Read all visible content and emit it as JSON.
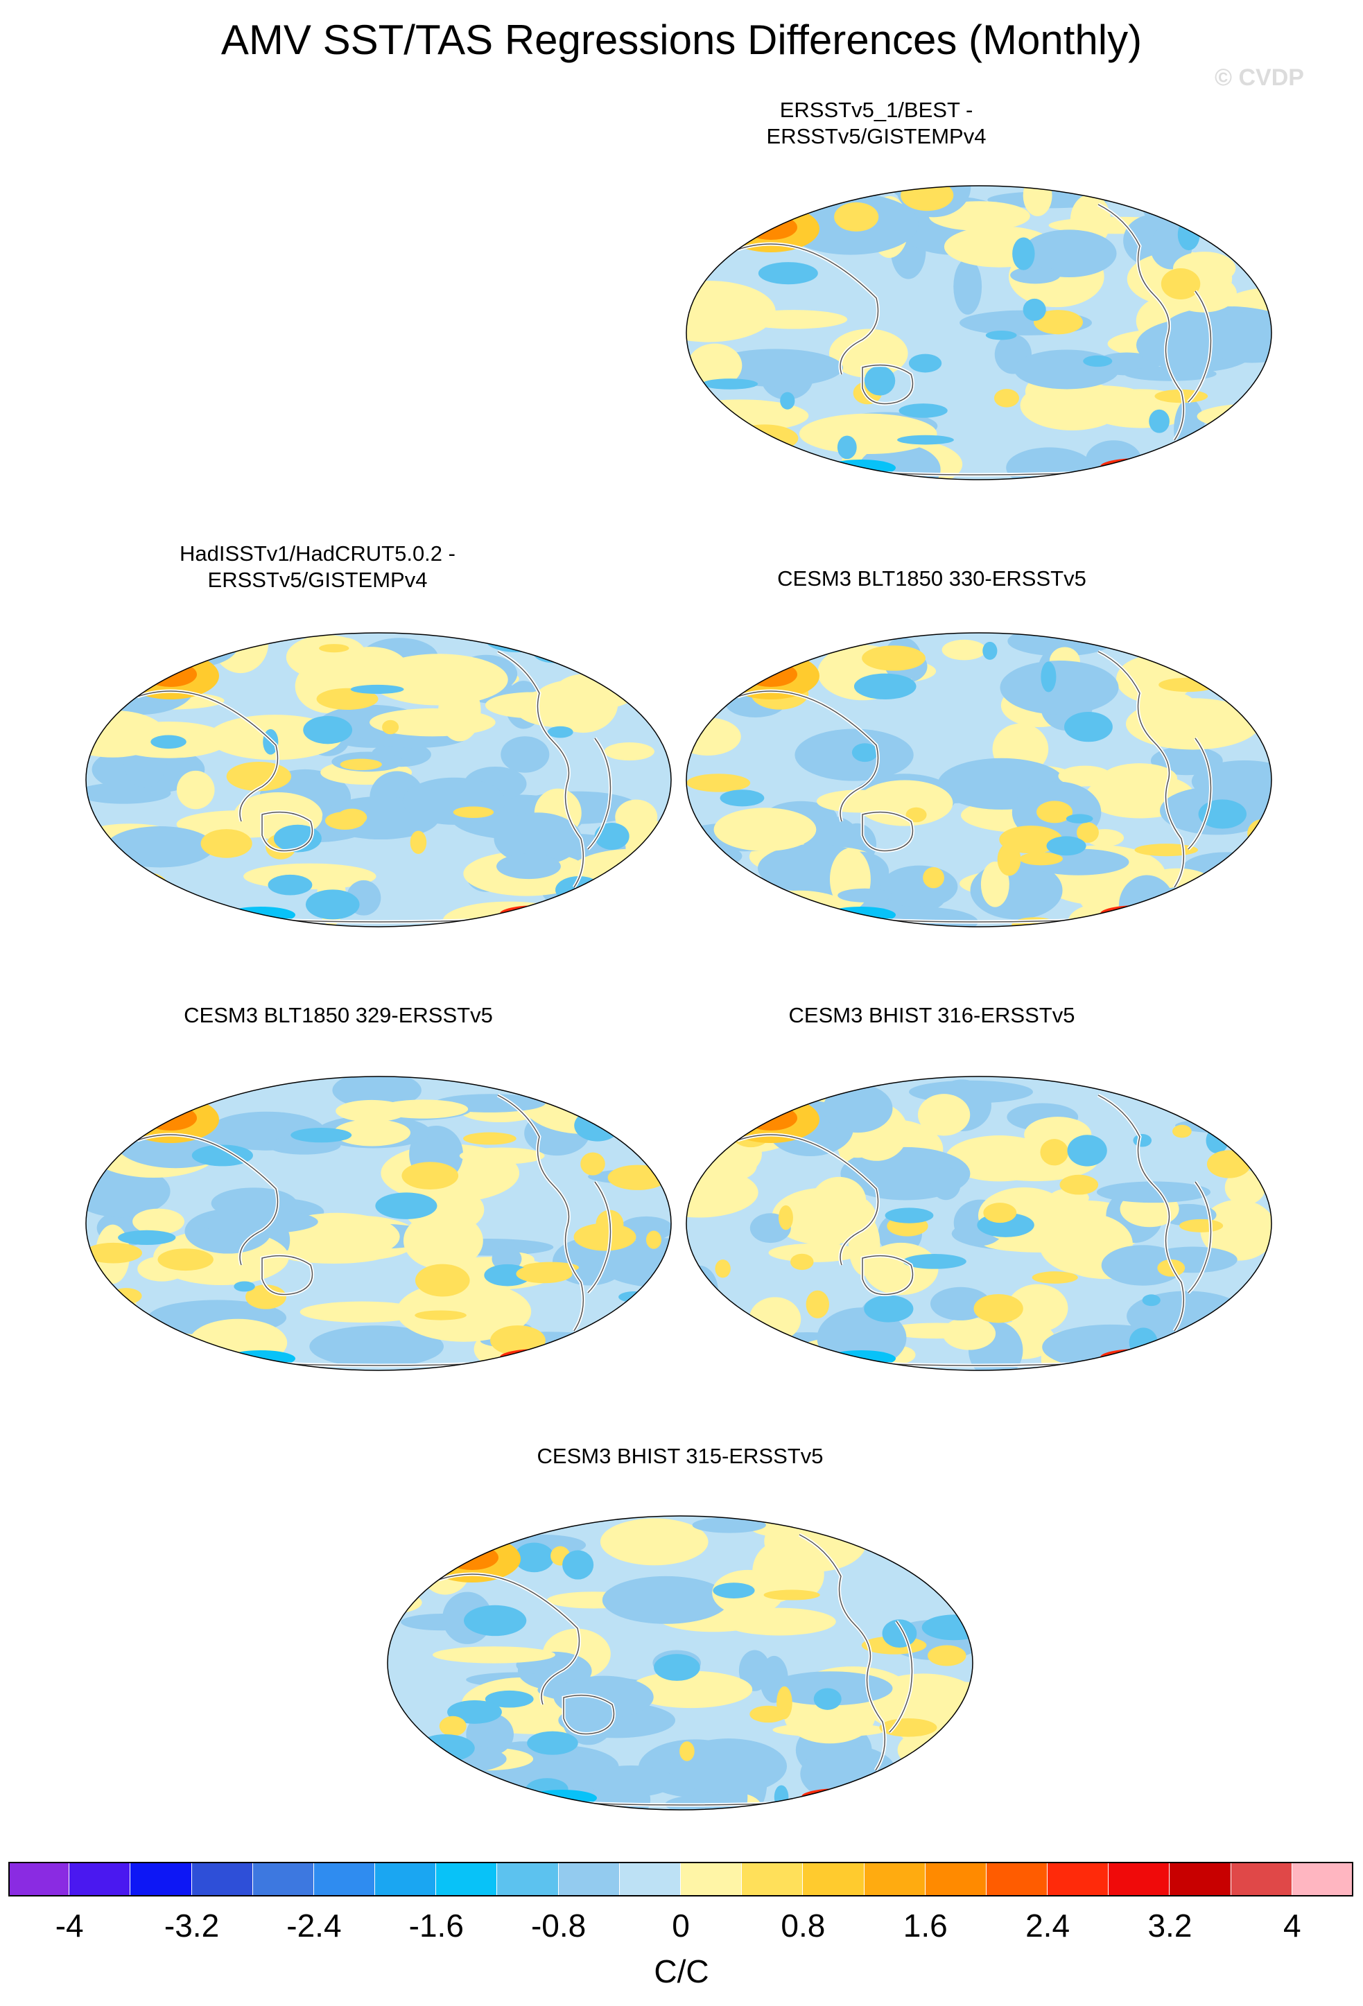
{
  "title": "AMV SST/TAS Regressions Differences (Monthly)",
  "watermark": "© CVDP",
  "panels": [
    {
      "id": "p1",
      "label": "ERSSTv5_1/BEST -\nERSSTv5/GISTEMPv4"
    },
    {
      "id": "p2",
      "label": "HadISSTv1/HadCRUT5.0.2 -\nERSSTv5/GISTEMPv4"
    },
    {
      "id": "p3",
      "label": "CESM3 BLT1850 330-ERSSTv5"
    },
    {
      "id": "p4",
      "label": "CESM3 BLT1850 329-ERSSTv5"
    },
    {
      "id": "p5",
      "label": "CESM3 BHIST 316-ERSSTv5"
    },
    {
      "id": "p6",
      "label": "CESM3 BHIST 315-ERSSTv5"
    }
  ],
  "colorbar": {
    "units": "C/C",
    "tick_labels": [
      "-4",
      "-3.2",
      "-2.4",
      "-1.6",
      "-0.8",
      "0",
      "0.8",
      "1.6",
      "2.4",
      "3.2",
      "4"
    ],
    "colors": [
      "#8a2be2",
      "#4a18f0",
      "#0d17f5",
      "#2e4fd8",
      "#3d78e0",
      "#2f8cf0",
      "#1aa6f2",
      "#08c2f8",
      "#5cc2ef",
      "#93cbef",
      "#bde1f5",
      "#fff5a6",
      "#ffe05a",
      "#ffcb2e",
      "#ffab10",
      "#ff8a00",
      "#ff5c00",
      "#ff2a0a",
      "#f00a0a",
      "#c80000",
      "#e04848",
      "#ffb6c1"
    ]
  }
}
